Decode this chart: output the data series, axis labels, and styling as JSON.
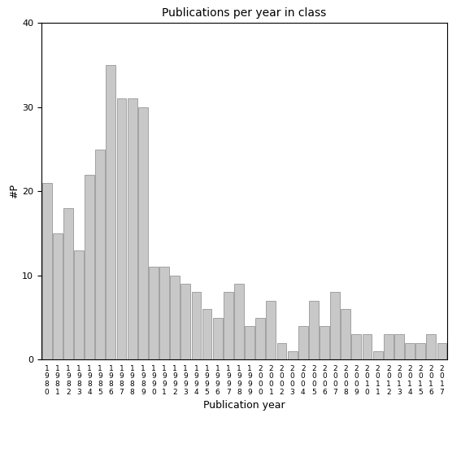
{
  "title": "Publications per year in class",
  "xlabel": "Publication year",
  "ylabel": "#P",
  "bar_color": "#c8c8c8",
  "bar_edgecolor": "#888888",
  "ylim": [
    0,
    40
  ],
  "yticks": [
    0,
    10,
    20,
    30,
    40
  ],
  "categories": [
    "1980",
    "1981",
    "1982",
    "1983",
    "1984",
    "1985",
    "1986",
    "1987",
    "1988",
    "1989",
    "1990",
    "1991",
    "1992",
    "1993",
    "1994",
    "1995",
    "1996",
    "1997",
    "1998",
    "1999",
    "2000",
    "2001",
    "2002",
    "2003",
    "2004",
    "2005",
    "2006",
    "2007",
    "2008",
    "2009",
    "2010",
    "2011",
    "2012",
    "2013",
    "2014",
    "2015",
    "2016",
    "2017"
  ],
  "values": [
    21,
    15,
    18,
    13,
    22,
    25,
    35,
    31,
    31,
    30,
    11,
    11,
    10,
    9,
    8,
    6,
    5,
    8,
    9,
    4,
    5,
    7,
    2,
    1,
    4,
    7,
    4,
    8,
    6,
    3,
    3,
    1,
    3,
    3,
    2,
    2,
    3,
    2
  ]
}
